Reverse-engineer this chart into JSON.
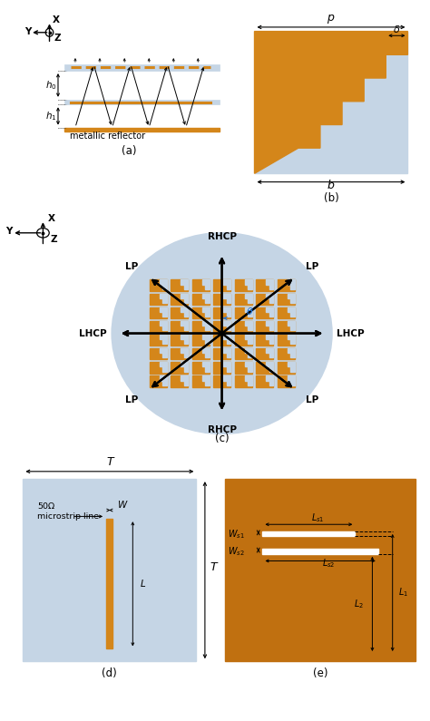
{
  "orange": "#D4861A",
  "light_blue": "#c5d5e5",
  "dark_orange": "#C07010",
  "bg_white": "#ffffff",
  "text_color": "#000000",
  "blue_arrow": "#2277DD",
  "panel_a_label": "(a)",
  "panel_b_label": "(b)",
  "panel_c_label": "(c)",
  "panel_d_label": "(d)",
  "panel_e_label": "(e)"
}
